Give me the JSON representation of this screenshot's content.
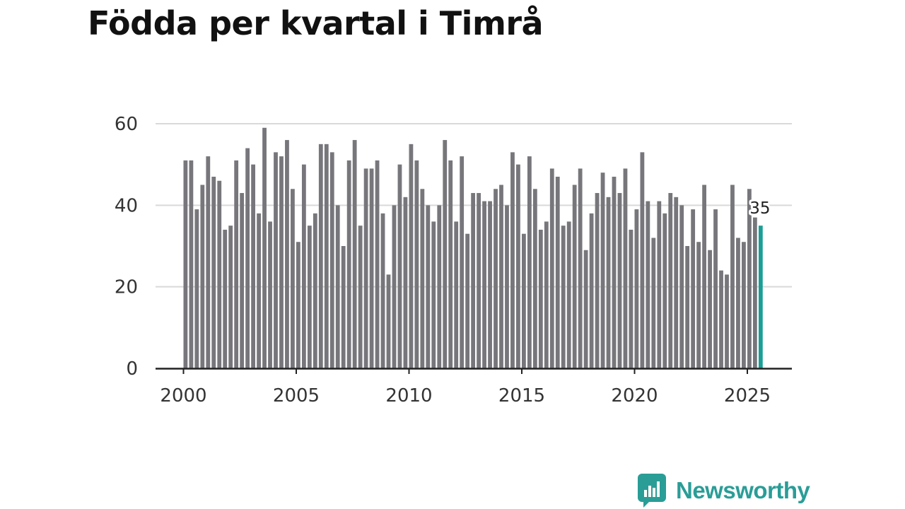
{
  "chart_data": {
    "type": "bar",
    "title": "Födda per kvartal i Timrå",
    "xlabel": "",
    "ylabel": "",
    "ylim": [
      0,
      60
    ],
    "yticks": [
      0,
      20,
      40,
      60
    ],
    "xticks": [
      "2000",
      "2005",
      "2010",
      "2015",
      "2020",
      "2025"
    ],
    "x_start": "2000 Q1",
    "frequency": "quarterly",
    "grid": true,
    "values": [
      51,
      51,
      39,
      45,
      52,
      47,
      46,
      34,
      35,
      51,
      43,
      54,
      50,
      38,
      59,
      36,
      53,
      52,
      56,
      44,
      31,
      50,
      35,
      38,
      55,
      55,
      53,
      40,
      30,
      51,
      56,
      35,
      49,
      49,
      51,
      38,
      23,
      40,
      50,
      42,
      55,
      51,
      44,
      40,
      36,
      40,
      56,
      51,
      36,
      52,
      33,
      43,
      43,
      41,
      41,
      44,
      45,
      40,
      53,
      50,
      33,
      52,
      44,
      34,
      36,
      49,
      47,
      35,
      36,
      45,
      49,
      29,
      38,
      43,
      48,
      42,
      47,
      43,
      49,
      34,
      39,
      53,
      41,
      32,
      41,
      38,
      43,
      42,
      40,
      30,
      39,
      31,
      45,
      29,
      39,
      24,
      23,
      45,
      32,
      31,
      44,
      37,
      35
    ],
    "highlight_label": "35",
    "colors": {
      "bar": "#77767b",
      "highlight": "#1a9e95",
      "grid": "#d9d9d9",
      "axis": "#222222",
      "tick_text": "#333333"
    }
  },
  "brand": {
    "name": "Newsworthy",
    "color": "#2a9d97"
  }
}
